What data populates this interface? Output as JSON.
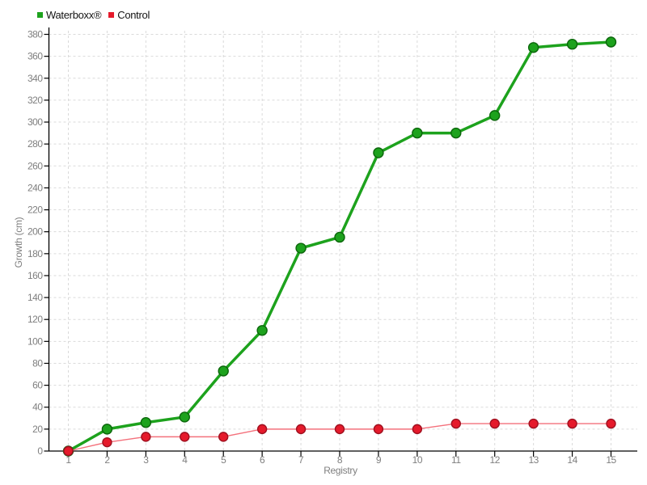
{
  "chart_data": {
    "type": "line",
    "title": "",
    "xlabel": "Registry",
    "ylabel": "Growth (cm)",
    "categories": [
      "1",
      "2",
      "3",
      "4",
      "5",
      "6",
      "7",
      "8",
      "9",
      "10",
      "11",
      "12",
      "13",
      "14",
      "15"
    ],
    "x": [
      1,
      2,
      3,
      4,
      5,
      6,
      7,
      8,
      9,
      10,
      11,
      12,
      13,
      14,
      15
    ],
    "series": [
      {
        "name": "Waterboxx®",
        "values": [
          0,
          20,
          26,
          31,
          73,
          110,
          185,
          195,
          272,
          290,
          290,
          306,
          368,
          371,
          373
        ],
        "color": "#1da21d",
        "point_color": "#1da21d",
        "point_border": "#0b660b",
        "line_width": 3.5,
        "point_radius": 6
      },
      {
        "name": "Control",
        "values": [
          0,
          8,
          13,
          13,
          13,
          20,
          20,
          20,
          20,
          20,
          25,
          25,
          25,
          25,
          25
        ],
        "color": "#f4717c",
        "point_color": "#e51a2b",
        "point_border": "#9f1120",
        "line_width": 1.4,
        "point_radius": 5.5
      }
    ],
    "ylim": [
      0,
      380
    ],
    "ytick_step": 20,
    "yticks": [
      0,
      20,
      40,
      60,
      80,
      100,
      120,
      140,
      160,
      180,
      200,
      220,
      240,
      260,
      280,
      300,
      320,
      340,
      360,
      380
    ],
    "grid": "dashed",
    "grid_color": "#dadada",
    "axis_color": "#000000",
    "tick_label_color": "#7f7f7f",
    "background": "#ffffff",
    "legend_position": "top-left"
  }
}
